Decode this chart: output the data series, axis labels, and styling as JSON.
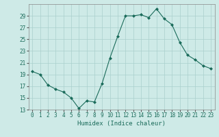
{
  "x": [
    0,
    1,
    2,
    3,
    4,
    5,
    6,
    7,
    8,
    9,
    10,
    11,
    12,
    13,
    14,
    15,
    16,
    17,
    18,
    19,
    20,
    21,
    22,
    23
  ],
  "y": [
    19.5,
    19.0,
    17.2,
    16.5,
    16.0,
    15.0,
    13.2,
    14.5,
    14.3,
    17.5,
    21.8,
    25.5,
    29.0,
    29.0,
    29.2,
    28.7,
    30.2,
    28.5,
    27.5,
    24.5,
    22.3,
    21.5,
    20.5,
    20.0
  ],
  "xlabel": "Humidex (Indice chaleur)",
  "ylim": [
    13,
    31
  ],
  "xlim": [
    -0.5,
    23.5
  ],
  "yticks": [
    13,
    15,
    17,
    19,
    21,
    23,
    25,
    27,
    29
  ],
  "xticks": [
    0,
    1,
    2,
    3,
    4,
    5,
    6,
    7,
    8,
    9,
    10,
    11,
    12,
    13,
    14,
    15,
    16,
    17,
    18,
    19,
    20,
    21,
    22,
    23
  ],
  "line_color": "#1a6b5a",
  "marker_color": "#1a6b5a",
  "bg_color": "#ceeae7",
  "grid_color": "#aacfcc",
  "fig_bg": "#ceeae7",
  "tick_fontsize": 5.5,
  "xlabel_fontsize": 6.5
}
